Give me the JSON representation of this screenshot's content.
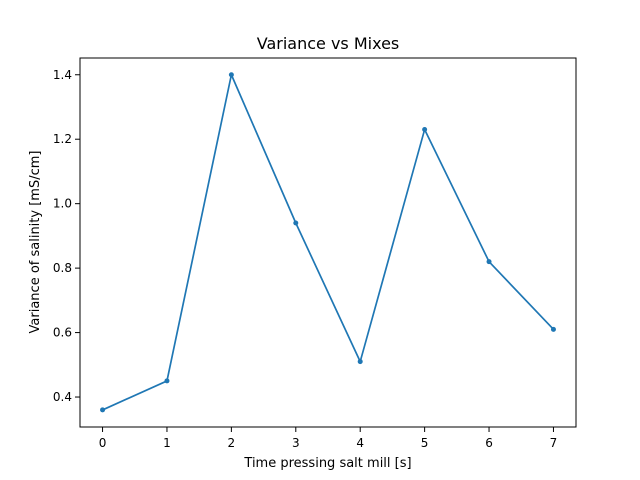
{
  "chart_data": {
    "type": "line",
    "title": "Variance vs Mixes",
    "xlabel": "Time pressing salt mill [s]",
    "ylabel": "Variance of salinity [mS/cm]",
    "x": [
      0,
      1,
      2,
      3,
      4,
      5,
      6,
      7
    ],
    "series": [
      {
        "values": [
          0.36,
          0.45,
          1.4,
          0.94,
          0.51,
          1.23,
          0.82,
          0.61
        ],
        "color": "#1f77b4",
        "marker": "circle"
      }
    ],
    "xticks": [
      "0",
      "1",
      "2",
      "3",
      "4",
      "5",
      "6",
      "7"
    ],
    "yticks": [
      "0.4",
      "0.6",
      "0.8",
      "1.0",
      "1.2",
      "1.4"
    ],
    "xlim": [
      -0.35,
      7.35
    ],
    "ylim": [
      0.307,
      1.452
    ],
    "grid": false,
    "legend": "none"
  }
}
